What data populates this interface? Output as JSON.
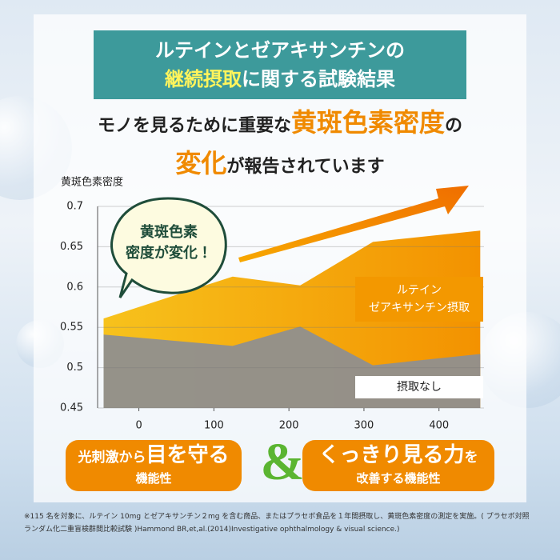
{
  "header": {
    "line1": "ルテインとゼアキサンチンの",
    "line2_highlight": "継続摂取",
    "line2_rest": "に関する試験結果"
  },
  "subtitle": {
    "part1": "モノを見るために重要な",
    "part2": "黄斑色素密度",
    "part3": "の",
    "part4": "変化",
    "part5": "が報告されています"
  },
  "chart_data": {
    "type": "area",
    "y_label": "黄斑色素密度",
    "x": [
      -47,
      125,
      215,
      312,
      455
    ],
    "xlim": [
      -55,
      460
    ],
    "xticks": [
      0,
      100,
      200,
      300,
      400
    ],
    "ylim": [
      0.45,
      0.7
    ],
    "yticks": [
      0.45,
      0.5,
      0.55,
      0.6,
      0.65,
      0.7
    ],
    "grid": true,
    "series": [
      {
        "name": "ルテイン\nゼアキサンチン摂取",
        "color": "#f39800",
        "values": [
          0.561,
          0.613,
          0.602,
          0.656,
          0.67
        ]
      },
      {
        "name": "摂取なし",
        "color": "#8f8f8f",
        "values": [
          0.541,
          0.527,
          0.551,
          0.503,
          0.517
        ]
      }
    ],
    "annotation": "黄斑色素\n密度が変化！"
  },
  "badges": [
    {
      "small": "光刺激から",
      "big": "目を守る",
      "sub": "機能性"
    },
    {
      "big": "くっきり見る力",
      "small": "を",
      "sub": "改善する機能性"
    }
  ],
  "ampersand": "&",
  "footnote": "※115 名を対象に、ルテイン 10mg とゼアキサンチン２mg を含む商品、またはプラセボ食品を１年間摂取し、黄斑色素密度の測定を実施。( プラセボ対照ランダム化二重盲検群間比較試験 )Hammond BR,et,al.(2014)Investigative ophthalmology & visual science.)"
}
